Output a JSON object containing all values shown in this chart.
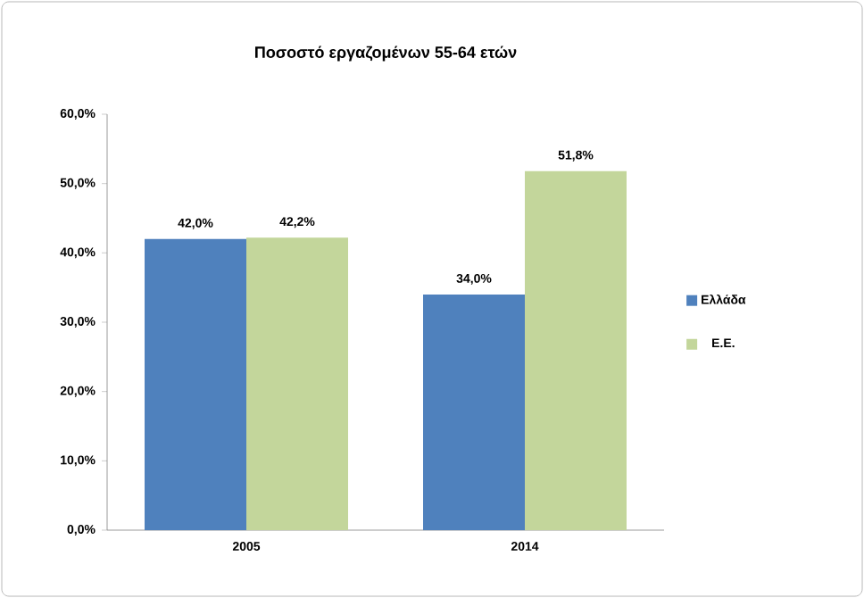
{
  "chart_data": {
    "type": "bar",
    "title": "Ποσοστό εργαζομένων 55-64 ετών",
    "categories": [
      "2005",
      "2014"
    ],
    "series": [
      {
        "name": "Ελλάδα",
        "color": "#4f81bd",
        "values": [
          42.0,
          34.0
        ],
        "value_labels": [
          "42,0%",
          "34,0%"
        ]
      },
      {
        "name": "Ε.Ε.",
        "color": "#c3d69b",
        "values": [
          42.2,
          51.8
        ],
        "value_labels": [
          "42,2%",
          "51,8%"
        ]
      }
    ],
    "ylim": [
      0,
      60
    ],
    "yticks": [
      {
        "value": 0,
        "label": "0,0%"
      },
      {
        "value": 10,
        "label": "10,0%"
      },
      {
        "value": 20,
        "label": "20,0%"
      },
      {
        "value": 30,
        "label": "30,0%"
      },
      {
        "value": 40,
        "label": "40,0%"
      },
      {
        "value": 50,
        "label": "50,0%"
      },
      {
        "value": 60,
        "label": "60,0%"
      }
    ],
    "legend": "right",
    "grid": false
  }
}
